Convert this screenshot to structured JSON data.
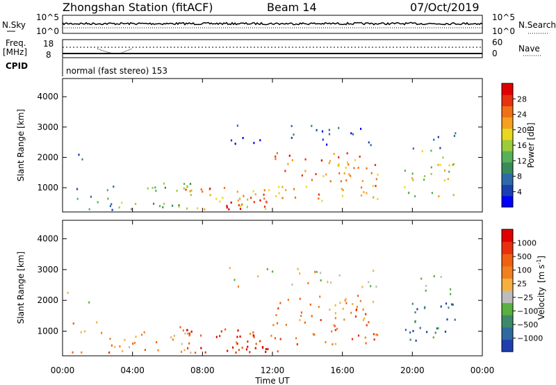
{
  "header": {
    "station": "Zhongshan Station (fitACF)",
    "beam": "Beam 14",
    "date": "07/Oct/2019"
  },
  "chart_data": [
    {
      "type": "line",
      "panel": "noise",
      "left_label": "N.Sky",
      "right_label": "N.Search",
      "left_ticks": [
        "10^5",
        "10^0"
      ],
      "right_ticks": [
        "10^5",
        "10^0"
      ],
      "scale": "log"
    },
    {
      "type": "line",
      "panel": "frequency",
      "left_label_lines": [
        "Freq.",
        "[MHz]"
      ],
      "right_label": "Nave",
      "left_ticks": [
        "18",
        "8"
      ],
      "right_ticks": [
        "60",
        "0"
      ]
    },
    {
      "type": "table",
      "panel": "cpid",
      "label": "CPID",
      "value": "normal (fast stereo) 153"
    },
    {
      "type": "heatmap",
      "panel": "power",
      "ylabel": "Slant Range [km]",
      "yticks": [
        "4000",
        "3000",
        "2000",
        "1000"
      ],
      "ytick_values": [
        4000,
        3000,
        2000,
        1000
      ],
      "ylim": [
        200,
        4600
      ],
      "xlim_hours": [
        0,
        24
      ],
      "colorbar_label": "Power [dB]",
      "colorbar_ticks": [
        "28",
        "24",
        "20",
        "16",
        "12",
        "8",
        "4"
      ],
      "colorbar_tick_values": [
        28,
        24,
        20,
        16,
        12,
        8,
        4
      ],
      "colorbar_range": [
        0,
        32
      ],
      "colorbar_colors": [
        "#0000ff",
        "#1a3fb0",
        "#2e6aa8",
        "#3a8a5a",
        "#58b058",
        "#9ccc3c",
        "#e8d820",
        "#f5a020",
        "#f07018",
        "#e83010",
        "#e00000"
      ]
    },
    {
      "type": "heatmap",
      "panel": "velocity",
      "ylabel": "Slant Range [km]",
      "yticks": [
        "4000",
        "3000",
        "2000",
        "1000"
      ],
      "ytick_values": [
        4000,
        3000,
        2000,
        1000
      ],
      "ylim": [
        200,
        4600
      ],
      "xlim_hours": [
        0,
        24
      ],
      "colorbar_label_main": "Velocity",
      "colorbar_label_unit": "[m s",
      "colorbar_label_exp": "-1",
      "colorbar_label_end": "]",
      "colorbar_ticks": [
        "1000",
        "500",
        "100",
        "25",
        "−25",
        "−100",
        "−500",
        "−1000"
      ],
      "colorbar_colors": [
        "#1f3fb0",
        "#2e6aa0",
        "#3d8a6a",
        "#5ab040",
        "#bcbcbc",
        "#f5b040",
        "#f08020",
        "#f06010",
        "#e83010",
        "#e00000"
      ]
    }
  ],
  "xaxis": {
    "label": "Time UT",
    "ticks": [
      "00:00",
      "04:00",
      "08:00",
      "12:00",
      "16:00",
      "20:00",
      "00:00"
    ],
    "tick_hours": [
      0,
      4,
      8,
      12,
      16,
      20,
      24
    ]
  }
}
